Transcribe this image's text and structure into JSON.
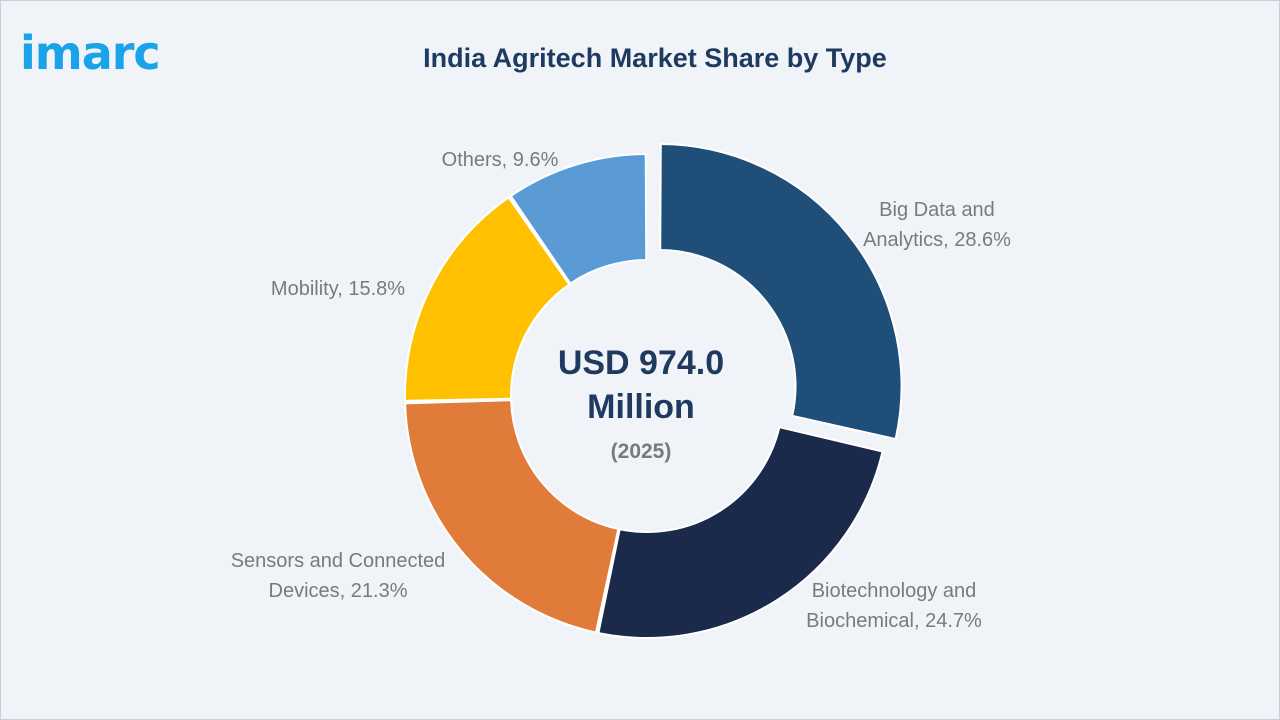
{
  "logo_text": "imarc",
  "chart_data": {
    "type": "pie",
    "style": "donut",
    "title": "India Agritech Market Share by Type",
    "center_value_lines": [
      "USD 974.0",
      "Million"
    ],
    "center_year": "(2025)",
    "unit": "%",
    "slices": [
      {
        "label_lines": [
          "Big Data and",
          "Analytics, 28.6%"
        ],
        "name": "Big Data and Analytics",
        "value": 28.6,
        "color": "#1f4e79",
        "exploded": true
      },
      {
        "label_lines": [
          "Biotechnology and",
          "Biochemical, 24.7%"
        ],
        "name": "Biotechnology and Biochemical",
        "value": 24.7,
        "color": "#1b2a4a",
        "exploded": false
      },
      {
        "label_lines": [
          "Sensors and Connected",
          "Devices, 21.3%"
        ],
        "name": "Sensors and Connected Devices",
        "value": 21.3,
        "color": "#e07b39",
        "exploded": false
      },
      {
        "label_lines": [
          "Mobility, 15.8%"
        ],
        "name": "Mobility",
        "value": 15.8,
        "color": "#ffc000",
        "exploded": false
      },
      {
        "label_lines": [
          "Others, 9.6%"
        ],
        "name": "Others",
        "value": 9.6,
        "color": "#5b9bd5",
        "exploded": false
      }
    ]
  }
}
